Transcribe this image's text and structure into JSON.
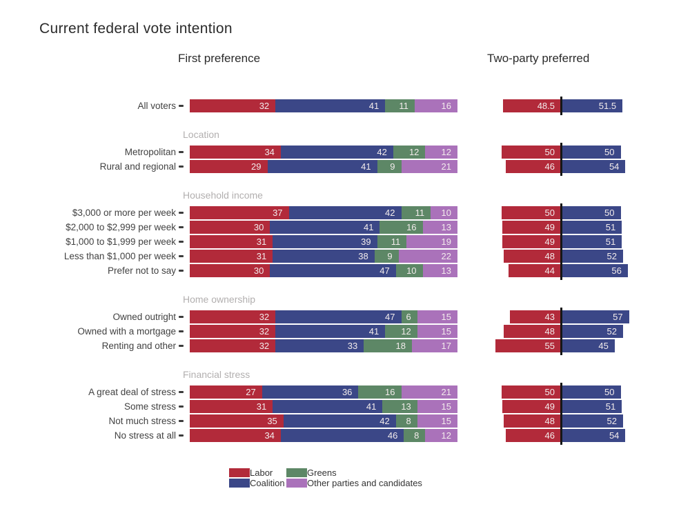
{
  "title": "Current federal vote intention",
  "panel_headings": {
    "first_preference": "First preference",
    "two_party_preferred": "Two-party preferred"
  },
  "colors": {
    "labor": "#b22a3a",
    "coalition": "#3b4787",
    "greens": "#5d8766",
    "other": "#aa72ba",
    "center_line": "#161616",
    "value_text": "#f3ecec",
    "section_header": "#b2afaf",
    "row_label": "#414141"
  },
  "legend": [
    {
      "key": "labor",
      "label": "Labor"
    },
    {
      "key": "coalition",
      "label": "Coalition"
    },
    {
      "key": "greens",
      "label": "Greens"
    },
    {
      "key": "other",
      "label": "Other parties and candidates"
    }
  ],
  "chart_data": {
    "type": "bar",
    "variant": "stacked-horizontal-first-preference plus diverging two-party-preferred",
    "title": "Current federal vote intention",
    "panels": [
      "First preference",
      "Two-party preferred"
    ],
    "series_names": [
      "Labor",
      "Coalition",
      "Greens",
      "Other parties and candidates"
    ],
    "tpp_series_names": [
      "Labor",
      "Coalition"
    ],
    "layout": {
      "fp_axis_range": [
        0,
        100
      ],
      "tpp_center": 50,
      "grid": false,
      "legend_position": "bottom"
    },
    "groups": [
      {
        "header": null,
        "rows": [
          {
            "label": "All voters",
            "first_preference": [
              32,
              41,
              11,
              16
            ],
            "two_party_preferred": [
              48.5,
              51.5
            ]
          }
        ]
      },
      {
        "header": "Location",
        "rows": [
          {
            "label": "Metropolitan",
            "first_preference": [
              34,
              42,
              12,
              12
            ],
            "two_party_preferred": [
              50,
              50
            ]
          },
          {
            "label": "Rural and regional",
            "first_preference": [
              29,
              41,
              9,
              21
            ],
            "two_party_preferred": [
              46,
              54
            ]
          }
        ]
      },
      {
        "header": "Household income",
        "rows": [
          {
            "label": "$3,000 or more per week",
            "first_preference": [
              37,
              42,
              11,
              10
            ],
            "two_party_preferred": [
              50,
              50
            ]
          },
          {
            "label": "$2,000 to $2,999 per week",
            "first_preference": [
              30,
              41,
              16,
              13
            ],
            "two_party_preferred": [
              49,
              51
            ]
          },
          {
            "label": "$1,000 to $1,999 per week",
            "first_preference": [
              31,
              39,
              11,
              19
            ],
            "two_party_preferred": [
              49,
              51
            ]
          },
          {
            "label": "Less than $1,000 per week",
            "first_preference": [
              31,
              38,
              9,
              22
            ],
            "two_party_preferred": [
              48,
              52
            ]
          },
          {
            "label": "Prefer not to say",
            "first_preference": [
              30,
              47,
              10,
              13
            ],
            "two_party_preferred": [
              44,
              56
            ]
          }
        ]
      },
      {
        "header": "Home ownership",
        "rows": [
          {
            "label": "Owned outright",
            "first_preference": [
              32,
              47,
              6,
              15
            ],
            "two_party_preferred": [
              43,
              57
            ]
          },
          {
            "label": "Owned with a mortgage",
            "first_preference": [
              32,
              41,
              12,
              15
            ],
            "two_party_preferred": [
              48,
              52
            ]
          },
          {
            "label": "Renting and other",
            "first_preference": [
              32,
              33,
              18,
              17
            ],
            "two_party_preferred": [
              55,
              45
            ]
          }
        ]
      },
      {
        "header": "Financial stress",
        "rows": [
          {
            "label": "A great deal of stress",
            "first_preference": [
              27,
              36,
              16,
              21
            ],
            "two_party_preferred": [
              50,
              50
            ]
          },
          {
            "label": "Some stress",
            "first_preference": [
              31,
              41,
              13,
              15
            ],
            "two_party_preferred": [
              49,
              51
            ]
          },
          {
            "label": "Not much stress",
            "first_preference": [
              35,
              42,
              8,
              15
            ],
            "two_party_preferred": [
              48,
              52
            ]
          },
          {
            "label": "No stress at all",
            "first_preference": [
              34,
              46,
              8,
              12
            ],
            "two_party_preferred": [
              46,
              54
            ]
          }
        ]
      }
    ]
  }
}
